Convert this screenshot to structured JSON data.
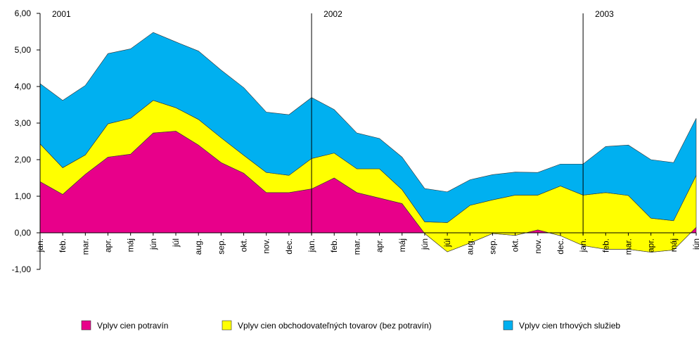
{
  "chart_data": {
    "type": "stacked_area",
    "categories": [
      "jan.",
      "feb.",
      "mar.",
      "apr.",
      "máj",
      "jún",
      "júl",
      "aug.",
      "sep.",
      "okt.",
      "nov.",
      "dec.",
      "jan.",
      "feb.",
      "mar.",
      "apr.",
      "máj",
      "jún",
      "júl",
      "aug.",
      "sep.",
      "okt.",
      "nov.",
      "dec.",
      "jan.",
      "feb.",
      "mar.",
      "apr.",
      "máj",
      "jún"
    ],
    "year_labels": [
      "2001",
      "2002",
      "2003"
    ],
    "series": [
      {
        "name": "Vplyv cien potravín",
        "color": "#e8008a",
        "values": [
          1.4,
          1.05,
          1.6,
          2.07,
          2.15,
          2.73,
          2.78,
          2.4,
          1.92,
          1.63,
          1.1,
          1.1,
          1.2,
          1.5,
          1.1,
          0.95,
          0.8,
          -0.02,
          -0.52,
          -0.28,
          -0.02,
          -0.07,
          0.08,
          -0.08,
          -0.35,
          -0.45,
          -0.45,
          -0.53,
          -0.47,
          0.15
        ]
      },
      {
        "name": "Vplyv cien obchodovateľných tovarov (bez potravín)",
        "color": "#ffff00",
        "values": [
          1.03,
          0.73,
          0.53,
          0.91,
          0.98,
          0.89,
          0.64,
          0.7,
          0.68,
          0.49,
          0.55,
          0.47,
          0.83,
          0.68,
          0.65,
          0.8,
          0.38,
          0.32,
          0.8,
          1.03,
          0.92,
          1.1,
          0.95,
          1.36,
          1.38,
          1.55,
          1.47,
          0.93,
          0.8,
          1.42
        ]
      },
      {
        "name": "Vplyv cien trhových služieb",
        "color": "#00b0f0",
        "values": [
          1.65,
          1.84,
          1.9,
          1.92,
          1.9,
          1.86,
          1.8,
          1.87,
          1.85,
          1.85,
          1.65,
          1.66,
          1.67,
          1.19,
          0.98,
          0.83,
          0.89,
          0.91,
          0.84,
          0.7,
          0.69,
          0.63,
          0.62,
          0.6,
          0.85,
          1.26,
          1.38,
          1.6,
          1.59,
          1.56
        ]
      }
    ],
    "ylim": [
      -1,
      6
    ],
    "yticks": [
      {
        "value": -1,
        "label": "-1,00"
      },
      {
        "value": 0,
        "label": "0,00"
      },
      {
        "value": 1,
        "label": "1,00"
      },
      {
        "value": 2,
        "label": "2,00"
      },
      {
        "value": 3,
        "label": "3,00"
      },
      {
        "value": 4,
        "label": "4,00"
      },
      {
        "value": 5,
        "label": "5,00"
      },
      {
        "value": 6,
        "label": "6,00"
      }
    ]
  }
}
